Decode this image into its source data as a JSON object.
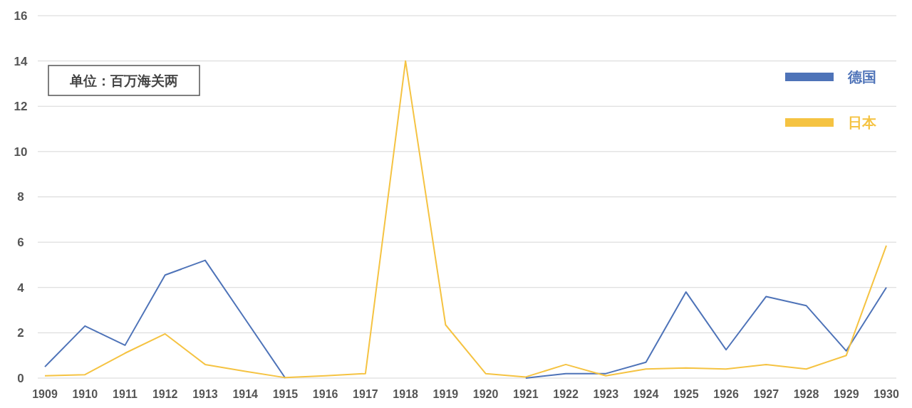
{
  "chart_data": {
    "type": "line",
    "categories": [
      "1909",
      "1910",
      "1911",
      "1912",
      "1913",
      "1914",
      "1915",
      "1916",
      "1917",
      "1918",
      "1919",
      "1920",
      "1921",
      "1922",
      "1923",
      "1924",
      "1925",
      "1926",
      "1927",
      "1928",
      "1929",
      "1930"
    ],
    "series": [
      {
        "name": "德国",
        "color": "#4e73b8",
        "values": [
          0.5,
          2.3,
          1.45,
          4.55,
          5.2,
          2.6,
          0,
          null,
          null,
          null,
          null,
          null,
          0,
          0.2,
          0.2,
          0.7,
          3.8,
          1.25,
          3.6,
          3.2,
          1.2,
          4.0
        ]
      },
      {
        "name": "日本",
        "color": "#f5c342",
        "values": [
          0.1,
          0.15,
          1.1,
          1.95,
          0.6,
          0.3,
          0.02,
          0.1,
          0.2,
          14,
          2.35,
          0.2,
          0.05,
          0.6,
          0.1,
          0.4,
          0.45,
          0.4,
          0.6,
          0.4,
          1.0,
          5.85
        ]
      }
    ],
    "ylim": [
      0,
      16
    ],
    "yticks": [
      0,
      2,
      4,
      6,
      8,
      10,
      12,
      14,
      16
    ],
    "grid": "y",
    "legend": "top right",
    "marker": "none",
    "line_style": "solid",
    "annotations": [
      "单位：百万海关两"
    ]
  }
}
